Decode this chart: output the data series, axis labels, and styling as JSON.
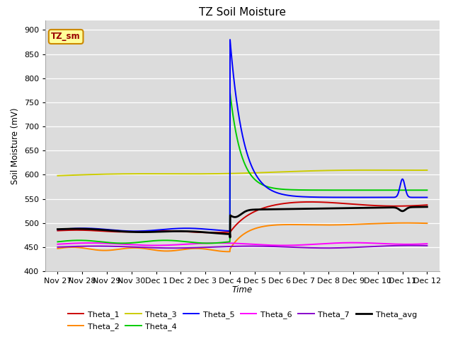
{
  "title": "TZ Soil Moisture",
  "ylabel": "Soil Moisture (mV)",
  "xlabel": "Time",
  "ylim": [
    400,
    920
  ],
  "yticks": [
    400,
    450,
    500,
    550,
    600,
    650,
    700,
    750,
    800,
    850,
    900
  ],
  "x_labels": [
    "Nov 27",
    "Nov 28",
    "Nov 29",
    "Nov 30",
    "Dec 1",
    "Dec 2",
    "Dec 3",
    "Dec 4",
    "Dec 5",
    "Dec 6",
    "Dec 7",
    "Dec 8",
    "Dec 9",
    "Dec 10",
    "Dec 11",
    "Dec 12"
  ],
  "bg_color": "#dcdcdc",
  "fig_bg": "#ffffff",
  "legend_label": "TZ_sm",
  "series": {
    "Theta_1": {
      "color": "#cc0000",
      "lw": 1.4
    },
    "Theta_2": {
      "color": "#ff8800",
      "lw": 1.4
    },
    "Theta_3": {
      "color": "#cccc00",
      "lw": 1.4
    },
    "Theta_4": {
      "color": "#00cc00",
      "lw": 1.4
    },
    "Theta_5": {
      "color": "#0000ff",
      "lw": 1.4
    },
    "Theta_6": {
      "color": "#ff00ff",
      "lw": 1.4
    },
    "Theta_7": {
      "color": "#8800cc",
      "lw": 1.4
    },
    "Theta_avg": {
      "color": "#000000",
      "lw": 2.0
    }
  }
}
